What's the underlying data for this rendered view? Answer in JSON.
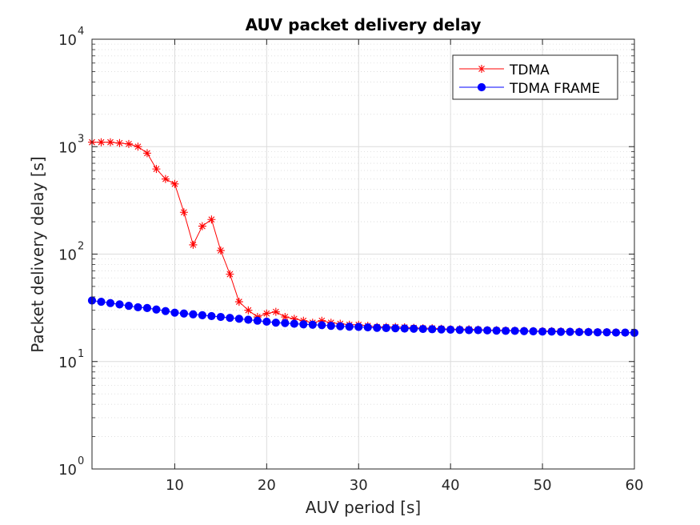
{
  "chart_data": {
    "type": "line",
    "title": "AUV packet delivery delay",
    "xlabel": "AUV period [s]",
    "ylabel": "Packet delivery delay [s]",
    "xlim": [
      1,
      60
    ],
    "ylim": [
      1,
      10000
    ],
    "yscale": "log",
    "grid": true,
    "minor_grid": true,
    "legend_position": "top-right",
    "x_ticks": [
      10,
      20,
      30,
      40,
      50,
      60
    ],
    "x_tick_labels": [
      "10",
      "20",
      "30",
      "40",
      "50",
      "60"
    ],
    "y_ticks": [
      1,
      10,
      100,
      1000,
      10000
    ],
    "y_tick_labels": [
      {
        "base": "10",
        "exp": "0"
      },
      {
        "base": "10",
        "exp": "1"
      },
      {
        "base": "10",
        "exp": "2"
      },
      {
        "base": "10",
        "exp": "3"
      },
      {
        "base": "10",
        "exp": "4"
      }
    ],
    "x": [
      1,
      2,
      3,
      4,
      5,
      6,
      7,
      8,
      9,
      10,
      11,
      12,
      13,
      14,
      15,
      16,
      17,
      18,
      19,
      20,
      21,
      22,
      23,
      24,
      25,
      26,
      27,
      28,
      29,
      30,
      31,
      32,
      33,
      34,
      35,
      36,
      37,
      38,
      39,
      40,
      41,
      42,
      43,
      44,
      45,
      46,
      47,
      48,
      49,
      50,
      51,
      52,
      53,
      54,
      55,
      56,
      57,
      58,
      59,
      60
    ],
    "series": [
      {
        "name": "TDMA",
        "color": "#ff0000",
        "marker": "asterisk",
        "values": [
          1100,
          1100,
          1100,
          1080,
          1060,
          1000,
          870,
          620,
          500,
          450,
          245,
          122,
          182,
          210,
          108,
          65,
          36,
          30,
          26,
          28,
          29,
          26,
          25,
          24,
          23,
          24,
          23,
          22.5,
          22,
          22,
          21.5,
          21,
          21,
          21,
          20.8,
          20.6,
          20.4,
          20.4,
          20.2,
          20,
          20,
          20,
          19.8,
          19.6,
          19.6,
          19.5,
          19.4,
          19.3,
          19.2,
          19.2,
          19.2,
          19.1,
          19,
          19,
          18.9,
          18.8,
          18.8,
          18.7,
          18.6,
          18.6
        ]
      },
      {
        "name": "TDMA FRAME",
        "color": "#0000ff",
        "marker": "filled-circle",
        "values": [
          37,
          36,
          35,
          34,
          33,
          32,
          31.5,
          30.5,
          29.5,
          28.5,
          28,
          27.5,
          27,
          26.5,
          26,
          25.5,
          25,
          24.5,
          24,
          23.5,
          23,
          22.8,
          22.5,
          22.2,
          22,
          21.8,
          21.5,
          21.3,
          21.1,
          21,
          20.8,
          20.6,
          20.5,
          20.4,
          20.3,
          20.2,
          20.1,
          20,
          19.9,
          19.8,
          19.7,
          19.6,
          19.6,
          19.5,
          19.4,
          19.3,
          19.3,
          19.2,
          19.1,
          19,
          19,
          18.9,
          18.9,
          18.8,
          18.8,
          18.7,
          18.7,
          18.6,
          18.6,
          18.5
        ]
      }
    ]
  }
}
